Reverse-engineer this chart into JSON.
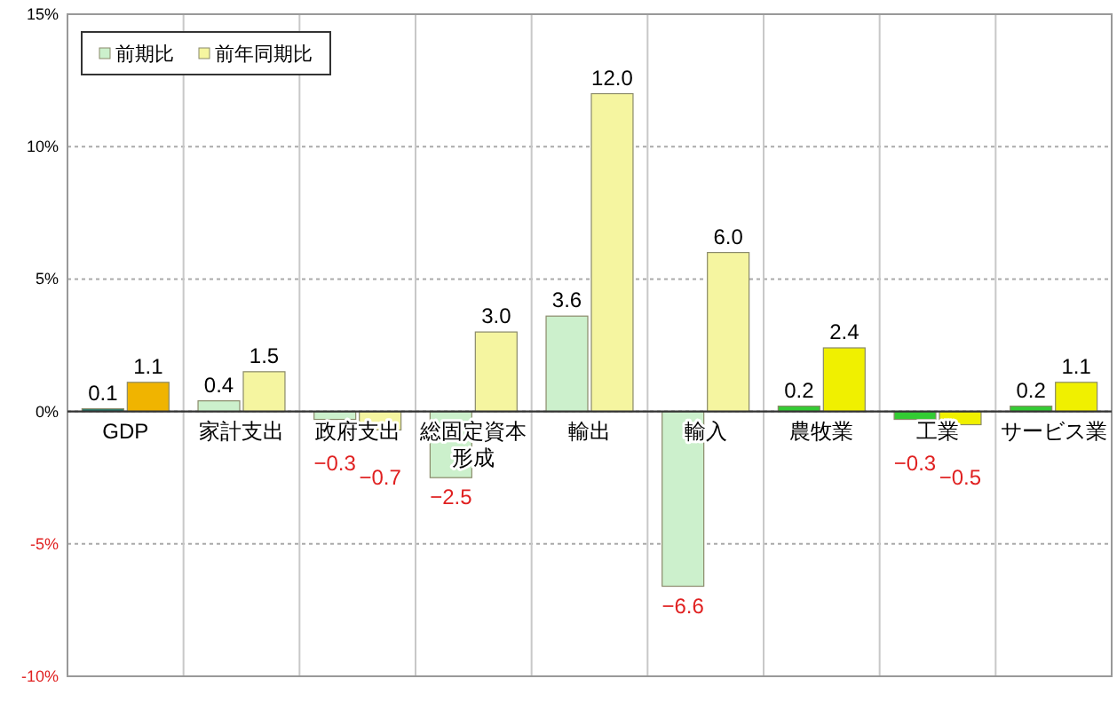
{
  "chart_data": {
    "type": "bar",
    "categories": [
      "GDP",
      "家計支出",
      "政府支出",
      "総固定資本形成",
      "輸出",
      "輸入",
      "農牧業",
      "工業",
      "サービス業"
    ],
    "series": [
      {
        "name": "前期比",
        "color": "#ccf0cc",
        "colors": [
          "#1f7a6e",
          "#ccf0cc",
          "#ccf0cc",
          "#ccf0cc",
          "#ccf0cc",
          "#ccf0cc",
          "#33cc33",
          "#33cc33",
          "#33cc33"
        ],
        "values": [
          0.1,
          0.4,
          -0.3,
          -2.5,
          3.6,
          -6.6,
          0.2,
          -0.3,
          0.2
        ],
        "value_labels": [
          "0.1",
          "0.4",
          "−0.3",
          "−2.5",
          "3.6",
          "−6.6",
          "0.2",
          "−0.3",
          "0.2"
        ]
      },
      {
        "name": "前年同期比",
        "color": "#f5f5a0",
        "colors": [
          "#f0b400",
          "#f5f5a0",
          "#f5f5a0",
          "#f5f5a0",
          "#f5f5a0",
          "#f5f5a0",
          "#f0f000",
          "#f0f000",
          "#f0f000"
        ],
        "values": [
          1.1,
          1.5,
          -0.7,
          3.0,
          12.0,
          6.0,
          2.4,
          -0.5,
          1.1
        ],
        "value_labels": [
          "1.1",
          "1.5",
          "−0.7",
          "3.0",
          "12.0",
          "6.0",
          "2.4",
          "−0.5",
          "1.1"
        ]
      }
    ],
    "ylim": [
      -10,
      15
    ],
    "yticks": [
      {
        "value": -10,
        "label": "-10%"
      },
      {
        "value": -5,
        "label": "-5%"
      },
      {
        "value": 0,
        "label": "0%"
      },
      {
        "value": 5,
        "label": "5%"
      },
      {
        "value": 10,
        "label": "10%"
      },
      {
        "value": 15,
        "label": "15%"
      }
    ],
    "grid": true,
    "legend": "top left"
  }
}
